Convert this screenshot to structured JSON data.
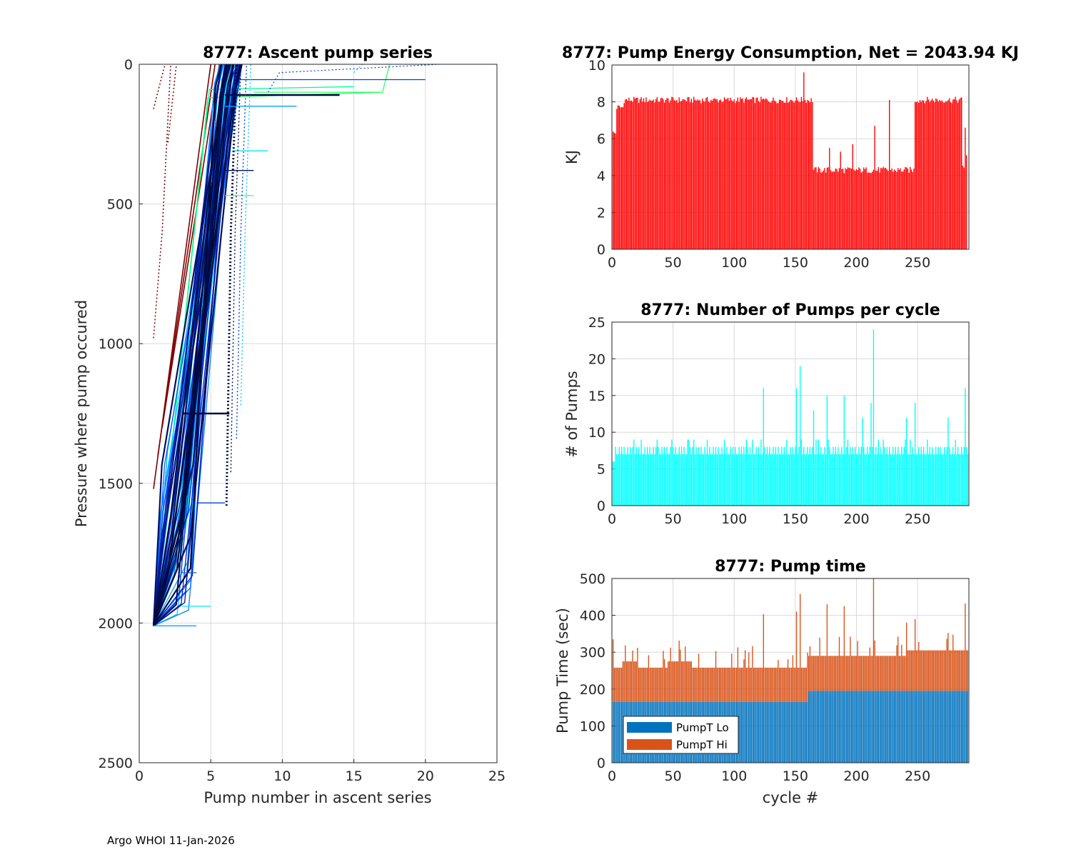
{
  "footer": "Argo WHOI 11-Jan-2026",
  "colors": {
    "energy_bar": "#ff0000",
    "pumps_bar": "#00ffff",
    "pump_lo": "#0072bd",
    "pump_hi": "#d95319",
    "grid": "#d9d9d9"
  },
  "chart_data": [
    {
      "id": "ascent",
      "type": "line",
      "title": "8777: Ascent pump series",
      "xlabel": "Pump number in ascent series",
      "ylabel": "Pressure where pump occured",
      "xlim": [
        0,
        25
      ],
      "ylim": [
        0,
        2500
      ],
      "y_reversed": true,
      "xticks": [
        0,
        5,
        10,
        15,
        20,
        25
      ],
      "yticks": [
        0,
        500,
        1000,
        1500,
        2000,
        2500
      ],
      "grid": true
    },
    {
      "id": "energy",
      "type": "bar",
      "title": "8777: Pump Energy Consumption,  Net = 2043.94 KJ",
      "xlabel": "",
      "ylabel": "KJ",
      "xlim": [
        0,
        292
      ],
      "ylim": [
        0,
        10
      ],
      "xticks": [
        0,
        50,
        100,
        150,
        200,
        250
      ],
      "yticks": [
        0,
        2,
        4,
        6,
        8,
        10
      ],
      "segments": [
        {
          "from": 1,
          "to": 3,
          "value": 6.3
        },
        {
          "from": 4,
          "to": 9,
          "value": 7.7
        },
        {
          "from": 10,
          "to": 164,
          "value": 8.1
        },
        {
          "from": 165,
          "to": 247,
          "value": 4.3
        },
        {
          "from": 248,
          "to": 286,
          "value": 8.1
        },
        {
          "from": 287,
          "to": 290,
          "value": 4.5
        }
      ],
      "spikes": [
        [
          157,
          9.6
        ],
        [
          178,
          5.5
        ],
        [
          187,
          5.3
        ],
        [
          197,
          5.7
        ],
        [
          215,
          6.7
        ],
        [
          227,
          8.1
        ],
        [
          289,
          6.6
        ],
        [
          290,
          5.1
        ]
      ],
      "grid": true
    },
    {
      "id": "pumps",
      "type": "bar",
      "title": "8777: Number of Pumps per cycle",
      "xlabel": "",
      "ylabel": "# of Pumps",
      "xlim": [
        0,
        292
      ],
      "ylim": [
        0,
        25
      ],
      "xticks": [
        0,
        50,
        100,
        150,
        200,
        250
      ],
      "yticks": [
        0,
        5,
        10,
        15,
        20,
        25
      ],
      "base_pattern": [
        7,
        8,
        7,
        8,
        7,
        7,
        8
      ],
      "spikes": [
        [
          124,
          16
        ],
        [
          151,
          16
        ],
        [
          154,
          19
        ],
        [
          165,
          13
        ],
        [
          176,
          15
        ],
        [
          190,
          15
        ],
        [
          205,
          12
        ],
        [
          212,
          14
        ],
        [
          214,
          24
        ],
        [
          241,
          12
        ],
        [
          248,
          14
        ],
        [
          275,
          12
        ],
        [
          289,
          16
        ]
      ],
      "grid": true
    },
    {
      "id": "pumptime",
      "type": "bar",
      "stacked": true,
      "title": "8777: Pump time",
      "xlabel": "cycle #",
      "ylabel": "Pump Time (sec)",
      "xlim": [
        0,
        292
      ],
      "ylim": [
        0,
        500
      ],
      "xticks": [
        0,
        50,
        100,
        150,
        200,
        250
      ],
      "yticks": [
        0,
        100,
        200,
        300,
        400,
        500
      ],
      "legend": [
        "PumpT Lo",
        "PumpT Hi"
      ],
      "legend_location": "bottom-left",
      "lo_segments": [
        {
          "from": 1,
          "to": 160,
          "value": 165
        },
        {
          "from": 161,
          "to": 291,
          "value": 195
        }
      ],
      "total_segments": [
        {
          "from": 1,
          "to": 8,
          "value": 258
        },
        {
          "from": 9,
          "to": 20,
          "value": 275
        },
        {
          "from": 21,
          "to": 45,
          "value": 258
        },
        {
          "from": 46,
          "to": 65,
          "value": 275
        },
        {
          "from": 66,
          "to": 160,
          "value": 258
        },
        {
          "from": 161,
          "to": 240,
          "value": 290
        },
        {
          "from": 241,
          "to": 291,
          "value": 305
        }
      ],
      "spikes": [
        [
          1,
          335
        ],
        [
          124,
          403
        ],
        [
          151,
          410
        ],
        [
          154,
          458
        ],
        [
          176,
          430
        ],
        [
          190,
          425
        ],
        [
          214,
          500
        ],
        [
          241,
          380
        ],
        [
          248,
          390
        ],
        [
          275,
          352
        ],
        [
          289,
          432
        ]
      ],
      "grid": true
    }
  ]
}
